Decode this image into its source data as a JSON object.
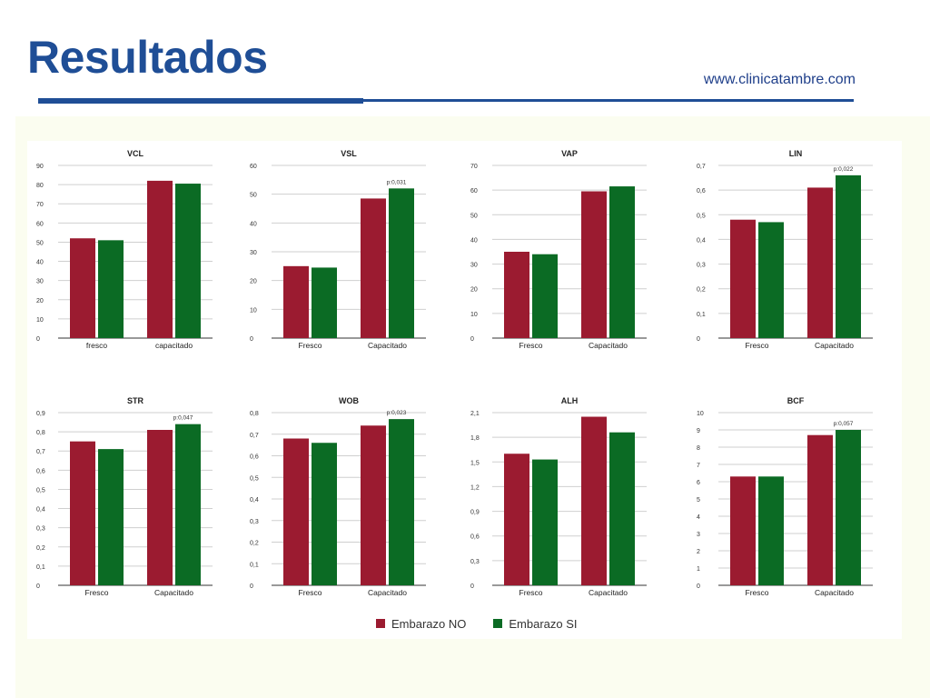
{
  "header": {
    "title": "Resultados",
    "website": "www.clinicatambre.com",
    "brand_color": "#1f4e96"
  },
  "legend": [
    {
      "label": "Embarazo NO",
      "color": "#9b1b30"
    },
    {
      "label": "Embarazo SI",
      "color": "#0b6b24"
    }
  ],
  "chart_data": [
    {
      "type": "bar",
      "title": "VCL",
      "categories": [
        "fresco",
        "capacitado"
      ],
      "ylim": [
        0,
        90
      ],
      "yticks": [
        "0",
        "10",
        "20",
        "30",
        "40",
        "50",
        "60",
        "70",
        "80",
        "90"
      ],
      "series": [
        {
          "name": "Embarazo NO",
          "values": [
            52,
            82
          ]
        },
        {
          "name": "Embarazo SI",
          "values": [
            51,
            80.5
          ]
        }
      ],
      "annotation": ""
    },
    {
      "type": "bar",
      "title": "VSL",
      "categories": [
        "Fresco",
        "Capacitado"
      ],
      "ylim": [
        0,
        60
      ],
      "yticks": [
        "0",
        "10",
        "20",
        "30",
        "40",
        "50",
        "60"
      ],
      "series": [
        {
          "name": "Embarazo NO",
          "values": [
            25,
            48.5
          ]
        },
        {
          "name": "Embarazo SI",
          "values": [
            24.5,
            52
          ]
        }
      ],
      "annotation": "p:0,031"
    },
    {
      "type": "bar",
      "title": "VAP",
      "categories": [
        "Fresco",
        "Capacitado"
      ],
      "ylim": [
        0,
        70
      ],
      "yticks": [
        "0",
        "10",
        "20",
        "30",
        "40",
        "50",
        "60",
        "70"
      ],
      "series": [
        {
          "name": "Embarazo NO",
          "values": [
            35,
            59.5
          ]
        },
        {
          "name": "Embarazo SI",
          "values": [
            34,
            61.5
          ]
        }
      ],
      "annotation": ""
    },
    {
      "type": "bar",
      "title": "LIN",
      "categories": [
        "Fresco",
        "Capacitado"
      ],
      "ylim": [
        0,
        0.7
      ],
      "yticks": [
        "0",
        "0,1",
        "0,2",
        "0,3",
        "0,4",
        "0,5",
        "0,6",
        "0,7"
      ],
      "series": [
        {
          "name": "Embarazo NO",
          "values": [
            0.48,
            0.61
          ]
        },
        {
          "name": "Embarazo SI",
          "values": [
            0.47,
            0.66
          ]
        }
      ],
      "annotation": "p:0,022"
    },
    {
      "type": "bar",
      "title": "STR",
      "categories": [
        "Fresco",
        "Capacitado"
      ],
      "ylim": [
        0,
        0.9
      ],
      "yticks": [
        "0",
        "0,1",
        "0,2",
        "0,3",
        "0,4",
        "0,5",
        "0,6",
        "0,7",
        "0,8",
        "0,9"
      ],
      "series": [
        {
          "name": "Embarazo NO",
          "values": [
            0.75,
            0.81
          ]
        },
        {
          "name": "Embarazo SI",
          "values": [
            0.71,
            0.84
          ]
        }
      ],
      "annotation": "p:0,047"
    },
    {
      "type": "bar",
      "title": "WOB",
      "categories": [
        "Fresco",
        "Capacitado"
      ],
      "ylim": [
        0,
        0.8
      ],
      "yticks": [
        "0",
        "0,1",
        "0,2",
        "0,3",
        "0,4",
        "0,5",
        "0,6",
        "0,7",
        "0,8"
      ],
      "series": [
        {
          "name": "Embarazo NO",
          "values": [
            0.68,
            0.74
          ]
        },
        {
          "name": "Embarazo SI",
          "values": [
            0.66,
            0.77
          ]
        }
      ],
      "annotation": "p:0,023"
    },
    {
      "type": "bar",
      "title": "ALH",
      "categories": [
        "Fresco",
        "Capacitado"
      ],
      "ylim": [
        0,
        2.1
      ],
      "yticks": [
        "0",
        "0,3",
        "0,6",
        "0,9",
        "1,2",
        "1,5",
        "1,8",
        "2,1"
      ],
      "series": [
        {
          "name": "Embarazo NO",
          "values": [
            1.6,
            2.05
          ]
        },
        {
          "name": "Embarazo SI",
          "values": [
            1.53,
            1.86
          ]
        }
      ],
      "annotation": ""
    },
    {
      "type": "bar",
      "title": "BCF",
      "categories": [
        "Fresco",
        "Capacitado"
      ],
      "ylim": [
        0,
        10
      ],
      "yticks": [
        "0",
        "1",
        "2",
        "3",
        "4",
        "5",
        "6",
        "7",
        "8",
        "9",
        "10"
      ],
      "series": [
        {
          "name": "Embarazo NO",
          "values": [
            6.3,
            8.7
          ]
        },
        {
          "name": "Embarazo SI",
          "values": [
            6.3,
            9.0
          ]
        }
      ],
      "annotation": "p:0,057"
    }
  ]
}
